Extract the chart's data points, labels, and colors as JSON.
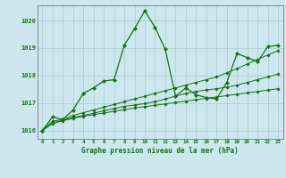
{
  "background_color": "#cce8ee",
  "grid_color": "#aacccc",
  "line_color": "#1a6e1a",
  "xlabel": "Graphe pression niveau de la mer (hPa)",
  "ylim": [
    1015.7,
    1020.55
  ],
  "xlim": [
    -0.5,
    23.5
  ],
  "yticks": [
    1016,
    1017,
    1018,
    1019,
    1020
  ],
  "xticks": [
    0,
    1,
    2,
    3,
    4,
    5,
    6,
    7,
    8,
    9,
    10,
    11,
    12,
    13,
    14,
    15,
    16,
    17,
    18,
    19,
    20,
    21,
    22,
    23
  ],
  "series": [
    [
      1016.0,
      1016.5,
      1016.4,
      1016.75,
      1017.35,
      1017.55,
      1017.8,
      1017.85,
      1019.1,
      1019.7,
      1020.35,
      1019.75,
      1018.95,
      1017.25,
      1017.55,
      1017.3,
      1017.2,
      1017.15,
      1017.75,
      1018.8,
      1018.65,
      1018.5,
      1019.05,
      1019.1
    ],
    [
      1016.0,
      1016.35,
      1016.4,
      1016.55,
      1016.65,
      1016.75,
      1016.85,
      1016.95,
      1017.05,
      1017.15,
      1017.25,
      1017.35,
      1017.45,
      1017.55,
      1017.65,
      1017.75,
      1017.85,
      1017.95,
      1018.1,
      1018.25,
      1018.42,
      1018.58,
      1018.75,
      1018.9
    ],
    [
      1016.0,
      1016.28,
      1016.38,
      1016.48,
      1016.55,
      1016.63,
      1016.72,
      1016.8,
      1016.88,
      1016.93,
      1016.98,
      1017.05,
      1017.15,
      1017.25,
      1017.35,
      1017.42,
      1017.48,
      1017.52,
      1017.58,
      1017.65,
      1017.75,
      1017.85,
      1017.95,
      1018.05
    ],
    [
      1016.0,
      1016.25,
      1016.36,
      1016.44,
      1016.52,
      1016.58,
      1016.64,
      1016.7,
      1016.76,
      1016.82,
      1016.87,
      1016.92,
      1016.97,
      1017.02,
      1017.07,
      1017.12,
      1017.17,
      1017.22,
      1017.27,
      1017.32,
      1017.37,
      1017.42,
      1017.47,
      1017.52
    ]
  ]
}
